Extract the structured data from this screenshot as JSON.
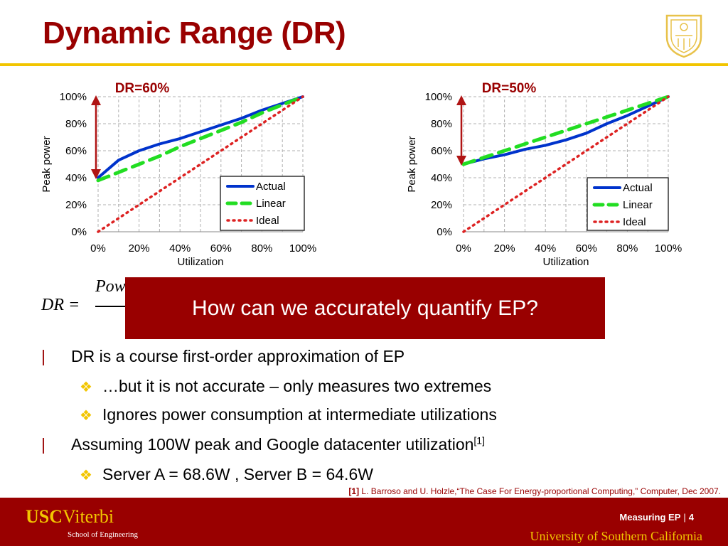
{
  "slide": {
    "title": "Dynamic Range (DR)",
    "callout": "How can we accurately quantify EP?",
    "formula_lhs": "DR =",
    "formula_numerator": "Pow",
    "bullets": [
      {
        "level": 1,
        "text": "DR is a course first-order approximation of EP"
      },
      {
        "level": 2,
        "text": "…but it is not accurate – only measures two extremes"
      },
      {
        "level": 2,
        "text": "Ignores power consumption at intermediate utilizations"
      },
      {
        "level": 1,
        "text": "Assuming 100W peak and Google datacenter utilization",
        "sup": "[1]"
      },
      {
        "level": 2,
        "text": "Server A = 68.6W , Server B = 64.6W"
      }
    ],
    "bullet_marks": {
      "level1": "|",
      "level2": "❖"
    },
    "citation_ref": "[1]",
    "citation_text": " L. Barroso and U. Holzle,“The Case For Energy-proportional Computing,” Computer, Dec 2007.",
    "colors": {
      "brand_red": "#990000",
      "brand_gold": "#f2c500"
    }
  },
  "footer": {
    "logo_usc": "USC",
    "logo_viterbi": "Viterbi",
    "school": "School of Engineering",
    "section": "Measuring EP",
    "separator": "|",
    "page": "4",
    "university": "University of Southern California"
  },
  "chart_data": [
    {
      "type": "line",
      "title": "DR=60%",
      "xlabel": "Utilization",
      "ylabel": "Peak power",
      "x": [
        0,
        10,
        20,
        30,
        40,
        50,
        60,
        70,
        80,
        90,
        100
      ],
      "xticks": [
        "0%",
        "20%",
        "40%",
        "60%",
        "80%",
        "100%"
      ],
      "yticks": [
        "0%",
        "20%",
        "40%",
        "60%",
        "80%",
        "100%"
      ],
      "xlim": [
        0,
        100
      ],
      "ylim": [
        0,
        100
      ],
      "grid": "dashed",
      "legend_position": "bottom-right",
      "series": [
        {
          "name": "Actual",
          "color": "#0033cc",
          "style": "solid",
          "values": [
            40,
            53,
            60,
            65,
            69,
            74,
            79,
            84,
            90,
            95,
            100
          ]
        },
        {
          "name": "Linear",
          "color": "#22dd22",
          "style": "dashed",
          "values": [
            38,
            44,
            50,
            56,
            63,
            69,
            75,
            81,
            88,
            94,
            100
          ]
        },
        {
          "name": "Ideal",
          "color": "#dd2222",
          "style": "dotted",
          "values": [
            0,
            10,
            20,
            30,
            40,
            50,
            60,
            70,
            80,
            90,
            100
          ]
        }
      ],
      "annotation": "double-arrow from 40% to 100% at x=0"
    },
    {
      "type": "line",
      "title": "DR=50%",
      "xlabel": "Utilization",
      "ylabel": "Peak power",
      "x": [
        0,
        10,
        20,
        30,
        40,
        50,
        60,
        70,
        80,
        90,
        100
      ],
      "xticks": [
        "0%",
        "20%",
        "40%",
        "60%",
        "80%",
        "100%"
      ],
      "yticks": [
        "0%",
        "20%",
        "40%",
        "60%",
        "80%",
        "100%"
      ],
      "xlim": [
        0,
        100
      ],
      "ylim": [
        0,
        100
      ],
      "grid": "dashed",
      "legend_position": "bottom-right",
      "series": [
        {
          "name": "Actual",
          "color": "#0033cc",
          "style": "solid",
          "values": [
            50,
            54,
            57,
            61,
            64,
            68,
            73,
            80,
            86,
            93,
            100
          ]
        },
        {
          "name": "Linear",
          "color": "#22dd22",
          "style": "dashed",
          "values": [
            50,
            55,
            60,
            65,
            70,
            75,
            80,
            85,
            90,
            95,
            100
          ]
        },
        {
          "name": "Ideal",
          "color": "#dd2222",
          "style": "dotted",
          "values": [
            0,
            10,
            20,
            30,
            40,
            50,
            60,
            70,
            80,
            90,
            100
          ]
        }
      ],
      "annotation": "double-arrow from 50% to 100% at x=0"
    }
  ]
}
